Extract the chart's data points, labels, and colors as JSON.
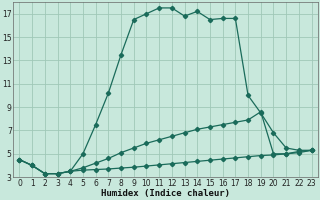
{
  "xlabel": "Humidex (Indice chaleur)",
  "bg_color": "#c8e8dc",
  "grid_color": "#a0c8b8",
  "line_color": "#1a6b5a",
  "xlim": [
    -0.5,
    23.5
  ],
  "ylim": [
    3,
    18
  ],
  "xticks": [
    0,
    1,
    2,
    3,
    4,
    5,
    6,
    7,
    8,
    9,
    10,
    11,
    12,
    13,
    14,
    15,
    16,
    17,
    18,
    19,
    20,
    21,
    22,
    23
  ],
  "yticks": [
    3,
    5,
    7,
    9,
    11,
    13,
    15,
    17
  ],
  "curve1_x": [
    0,
    1,
    2,
    3,
    4,
    5,
    6,
    7,
    8,
    9,
    10,
    11,
    12,
    13,
    14,
    15,
    16,
    17,
    18,
    19,
    20,
    21,
    22,
    23
  ],
  "curve1_y": [
    4.5,
    4.0,
    3.3,
    3.3,
    3.5,
    5.0,
    7.5,
    10.2,
    13.5,
    16.5,
    17.0,
    17.5,
    17.5,
    16.8,
    17.2,
    16.5,
    16.6,
    16.6,
    10.0,
    8.5,
    6.8,
    5.5,
    5.3,
    5.3
  ],
  "curve2_x": [
    0,
    1,
    2,
    3,
    4,
    5,
    6,
    7,
    8,
    9,
    10,
    11,
    12,
    13,
    14,
    15,
    16,
    17,
    18,
    19,
    20,
    21,
    22,
    23
  ],
  "curve2_y": [
    4.5,
    4.0,
    3.3,
    3.3,
    3.5,
    3.8,
    4.2,
    4.6,
    5.1,
    5.5,
    5.9,
    6.2,
    6.5,
    6.8,
    7.1,
    7.3,
    7.5,
    7.7,
    7.9,
    8.6,
    5.0,
    5.0,
    5.2,
    5.3
  ],
  "curve3_x": [
    0,
    1,
    2,
    3,
    4,
    5,
    6,
    7,
    8,
    9,
    10,
    11,
    12,
    13,
    14,
    15,
    16,
    17,
    18,
    19,
    20,
    21,
    22,
    23
  ],
  "curve3_y": [
    4.5,
    4.0,
    3.3,
    3.3,
    3.5,
    3.6,
    3.65,
    3.7,
    3.78,
    3.85,
    3.95,
    4.05,
    4.15,
    4.25,
    4.35,
    4.45,
    4.55,
    4.65,
    4.75,
    4.85,
    4.9,
    5.0,
    5.1,
    5.3
  ]
}
